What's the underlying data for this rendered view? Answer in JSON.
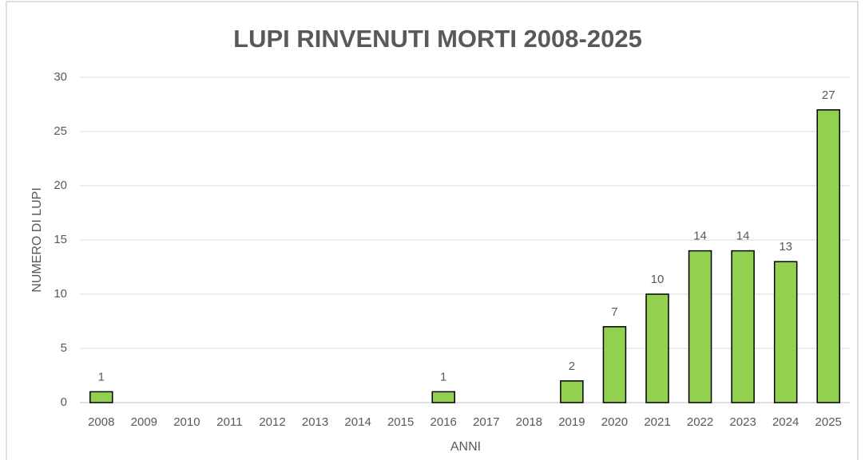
{
  "chart_data": {
    "type": "bar",
    "title": "LUPI RINVENUTI MORTI 2008-2025",
    "x_label": "ANNI",
    "y_label": "NUMERO DI LUPI",
    "categories": [
      "2008",
      "2009",
      "2010",
      "2011",
      "2012",
      "2013",
      "2014",
      "2015",
      "2016",
      "2017",
      "2018",
      "2019",
      "2020",
      "2021",
      "2022",
      "2023",
      "2024",
      "2025"
    ],
    "values": [
      1,
      0,
      0,
      0,
      0,
      0,
      0,
      0,
      1,
      0,
      0,
      2,
      7,
      10,
      14,
      14,
      13,
      27
    ],
    "color": "#92d050",
    "ylim": [
      0,
      30
    ],
    "yticks": [
      0,
      5,
      10,
      15,
      20,
      25,
      30
    ],
    "grid": true
  }
}
